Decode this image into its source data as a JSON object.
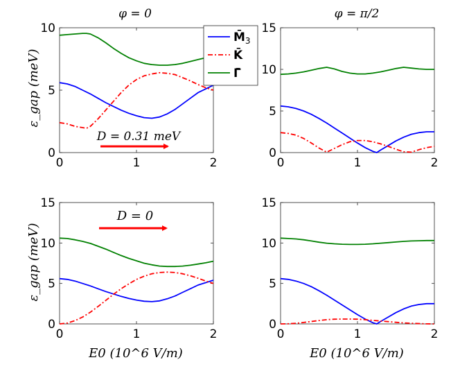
{
  "chart_data": [
    {
      "type": "line",
      "title": "φ = 0",
      "ylabel": "ε_gap (meV)",
      "xlabel": "",
      "xlim": [
        0,
        2
      ],
      "ylim": [
        0,
        10
      ],
      "xticks": [
        "0",
        "1",
        "2"
      ],
      "yticks": [
        "0",
        "5",
        "10"
      ],
      "annotation": "D = 0.31 meV",
      "series": [
        {
          "name": "M̄3",
          "color": "#0000ff",
          "style": "solid",
          "x": [
            0,
            0.1,
            0.2,
            0.3,
            0.4,
            0.5,
            0.6,
            0.7,
            0.8,
            0.9,
            1.0,
            1.1,
            1.2,
            1.3,
            1.4,
            1.5,
            1.6,
            1.7,
            1.8,
            1.9,
            2.0
          ],
          "y": [
            5.6,
            5.5,
            5.3,
            5.0,
            4.7,
            4.35,
            4.0,
            3.7,
            3.4,
            3.15,
            2.95,
            2.8,
            2.75,
            2.85,
            3.1,
            3.45,
            3.9,
            4.35,
            4.8,
            5.1,
            5.4
          ]
        },
        {
          "name": "K̄",
          "color": "#ff0000",
          "style": "dashdot",
          "x": [
            0,
            0.1,
            0.2,
            0.3,
            0.35,
            0.4,
            0.5,
            0.6,
            0.7,
            0.8,
            0.9,
            1.0,
            1.1,
            1.2,
            1.3,
            1.4,
            1.5,
            1.6,
            1.7,
            1.8,
            1.9,
            2.0
          ],
          "y": [
            2.4,
            2.3,
            2.1,
            2.0,
            1.95,
            2.1,
            2.7,
            3.4,
            4.1,
            4.8,
            5.4,
            5.85,
            6.15,
            6.3,
            6.4,
            6.35,
            6.25,
            6.0,
            5.75,
            5.45,
            5.2,
            5.0
          ]
        },
        {
          "name": "Γ̄",
          "color": "#008000",
          "style": "solid",
          "x": [
            0,
            0.1,
            0.2,
            0.3,
            0.35,
            0.4,
            0.5,
            0.6,
            0.7,
            0.8,
            0.9,
            1.0,
            1.1,
            1.2,
            1.3,
            1.4,
            1.5,
            1.6,
            1.7,
            1.8,
            1.9,
            2.0
          ],
          "y": [
            9.4,
            9.45,
            9.5,
            9.55,
            9.55,
            9.5,
            9.2,
            8.8,
            8.35,
            7.95,
            7.6,
            7.35,
            7.15,
            7.05,
            7.0,
            7.0,
            7.05,
            7.15,
            7.3,
            7.45,
            7.6,
            7.75
          ]
        }
      ],
      "legend": {
        "position": "top-right",
        "entries": [
          {
            "label": "M̄",
            "sub": "3",
            "color": "#0000ff",
            "style": "solid"
          },
          {
            "label": "K̄",
            "sub": "",
            "color": "#ff0000",
            "style": "dashdot"
          },
          {
            "label": "Γ̄",
            "sub": "",
            "color": "#008000",
            "style": "solid"
          }
        ]
      }
    },
    {
      "type": "line",
      "title": "φ = π/2",
      "ylabel": "",
      "xlabel": "",
      "xlim": [
        0,
        2
      ],
      "ylim": [
        0,
        15
      ],
      "xticks": [
        "0",
        "1",
        "2"
      ],
      "yticks": [
        "0",
        "5",
        "10",
        "15"
      ],
      "series": [
        {
          "name": "M̄3",
          "color": "#0000ff",
          "style": "solid",
          "x": [
            0,
            0.1,
            0.2,
            0.3,
            0.4,
            0.5,
            0.6,
            0.7,
            0.8,
            0.9,
            1.0,
            1.1,
            1.2,
            1.25,
            1.3,
            1.4,
            1.5,
            1.6,
            1.7,
            1.8,
            1.9,
            2.0
          ],
          "y": [
            5.6,
            5.5,
            5.3,
            5.0,
            4.6,
            4.1,
            3.55,
            2.95,
            2.35,
            1.75,
            1.15,
            0.6,
            0.15,
            0.0,
            0.3,
            0.85,
            1.4,
            1.85,
            2.2,
            2.4,
            2.5,
            2.5
          ]
        },
        {
          "name": "K̄",
          "color": "#ff0000",
          "style": "dashdot",
          "x": [
            0,
            0.1,
            0.2,
            0.3,
            0.4,
            0.5,
            0.6,
            0.7,
            0.8,
            0.9,
            1.0,
            1.1,
            1.2,
            1.3,
            1.4,
            1.5,
            1.6,
            1.7,
            1.8,
            1.9,
            2.0
          ],
          "y": [
            2.4,
            2.3,
            2.1,
            1.7,
            1.15,
            0.55,
            0.05,
            0.5,
            0.95,
            1.3,
            1.45,
            1.45,
            1.3,
            1.05,
            0.75,
            0.4,
            0.1,
            0.05,
            0.35,
            0.6,
            0.75
          ]
        },
        {
          "name": "Γ̄",
          "color": "#008000",
          "style": "solid",
          "x": [
            0,
            0.1,
            0.2,
            0.3,
            0.4,
            0.5,
            0.6,
            0.7,
            0.8,
            0.9,
            1.0,
            1.1,
            1.2,
            1.3,
            1.4,
            1.5,
            1.6,
            1.7,
            1.8,
            1.9,
            2.0
          ],
          "y": [
            9.4,
            9.45,
            9.55,
            9.7,
            9.9,
            10.1,
            10.25,
            10.05,
            9.75,
            9.55,
            9.45,
            9.45,
            9.55,
            9.7,
            9.9,
            10.1,
            10.25,
            10.15,
            10.05,
            10.0,
            10.0
          ]
        }
      ]
    },
    {
      "type": "line",
      "title": "",
      "ylabel": "ε_gap (meV)",
      "xlabel": "E0 (10^6 V/m)",
      "xlim": [
        0,
        2
      ],
      "ylim": [
        0,
        15
      ],
      "xticks": [
        "0",
        "1",
        "2"
      ],
      "yticks": [
        "0",
        "5",
        "10",
        "15"
      ],
      "annotation": "D = 0",
      "series": [
        {
          "name": "M̄3",
          "color": "#0000ff",
          "style": "solid",
          "x": [
            0,
            0.1,
            0.2,
            0.3,
            0.4,
            0.5,
            0.6,
            0.7,
            0.8,
            0.9,
            1.0,
            1.1,
            1.2,
            1.3,
            1.4,
            1.5,
            1.6,
            1.7,
            1.8,
            1.9,
            2.0
          ],
          "y": [
            5.6,
            5.5,
            5.3,
            5.0,
            4.7,
            4.35,
            4.0,
            3.7,
            3.4,
            3.15,
            2.95,
            2.8,
            2.75,
            2.85,
            3.1,
            3.45,
            3.9,
            4.35,
            4.8,
            5.1,
            5.4
          ]
        },
        {
          "name": "K̄",
          "color": "#ff0000",
          "style": "dashdot",
          "x": [
            0,
            0.1,
            0.2,
            0.3,
            0.4,
            0.5,
            0.6,
            0.7,
            0.8,
            0.9,
            1.0,
            1.1,
            1.2,
            1.3,
            1.4,
            1.5,
            1.6,
            1.7,
            1.8,
            1.9,
            2.0
          ],
          "y": [
            0.0,
            0.1,
            0.4,
            0.85,
            1.45,
            2.15,
            2.9,
            3.65,
            4.35,
            4.95,
            5.5,
            5.9,
            6.2,
            6.35,
            6.4,
            6.35,
            6.2,
            5.95,
            5.65,
            5.3,
            5.0
          ]
        },
        {
          "name": "Γ̄",
          "color": "#008000",
          "style": "solid",
          "x": [
            0,
            0.1,
            0.2,
            0.3,
            0.4,
            0.5,
            0.6,
            0.7,
            0.8,
            0.9,
            1.0,
            1.1,
            1.2,
            1.3,
            1.4,
            1.5,
            1.6,
            1.7,
            1.8,
            1.9,
            2.0
          ],
          "y": [
            10.6,
            10.55,
            10.4,
            10.2,
            9.95,
            9.6,
            9.25,
            8.85,
            8.45,
            8.1,
            7.8,
            7.5,
            7.3,
            7.15,
            7.1,
            7.1,
            7.15,
            7.25,
            7.4,
            7.55,
            7.75
          ]
        }
      ]
    },
    {
      "type": "line",
      "title": "",
      "ylabel": "",
      "xlabel": "E0 (10^6 V/m)",
      "xlim": [
        0,
        2
      ],
      "ylim": [
        0,
        15
      ],
      "xticks": [
        "0",
        "1",
        "2"
      ],
      "yticks": [
        "0",
        "5",
        "10",
        "15"
      ],
      "series": [
        {
          "name": "M̄3",
          "color": "#0000ff",
          "style": "solid",
          "x": [
            0,
            0.1,
            0.2,
            0.3,
            0.4,
            0.5,
            0.6,
            0.7,
            0.8,
            0.9,
            1.0,
            1.1,
            1.2,
            1.25,
            1.3,
            1.4,
            1.5,
            1.6,
            1.7,
            1.8,
            1.9,
            2.0
          ],
          "y": [
            5.6,
            5.5,
            5.3,
            5.0,
            4.6,
            4.1,
            3.55,
            2.95,
            2.35,
            1.75,
            1.15,
            0.6,
            0.15,
            0.0,
            0.3,
            0.85,
            1.4,
            1.85,
            2.2,
            2.4,
            2.5,
            2.5
          ]
        },
        {
          "name": "K̄",
          "color": "#ff0000",
          "style": "dashdot",
          "x": [
            0,
            0.1,
            0.2,
            0.3,
            0.4,
            0.5,
            0.6,
            0.7,
            0.8,
            0.9,
            1.0,
            1.1,
            1.2,
            1.3,
            1.4,
            1.5,
            1.6,
            1.7,
            1.8,
            1.9,
            2.0
          ],
          "y": [
            0.0,
            0.02,
            0.08,
            0.18,
            0.3,
            0.42,
            0.52,
            0.58,
            0.6,
            0.6,
            0.58,
            0.52,
            0.44,
            0.36,
            0.28,
            0.2,
            0.13,
            0.08,
            0.04,
            0.01,
            0.0
          ]
        },
        {
          "name": "Γ̄",
          "color": "#008000",
          "style": "solid",
          "x": [
            0,
            0.1,
            0.2,
            0.3,
            0.4,
            0.5,
            0.6,
            0.7,
            0.8,
            0.9,
            1.0,
            1.1,
            1.2,
            1.3,
            1.4,
            1.5,
            1.6,
            1.7,
            1.8,
            1.9,
            2.0
          ],
          "y": [
            10.6,
            10.55,
            10.5,
            10.4,
            10.25,
            10.1,
            9.98,
            9.9,
            9.85,
            9.82,
            9.82,
            9.85,
            9.9,
            9.98,
            10.05,
            10.12,
            10.2,
            10.25,
            10.28,
            10.3,
            10.3
          ]
        }
      ]
    }
  ]
}
